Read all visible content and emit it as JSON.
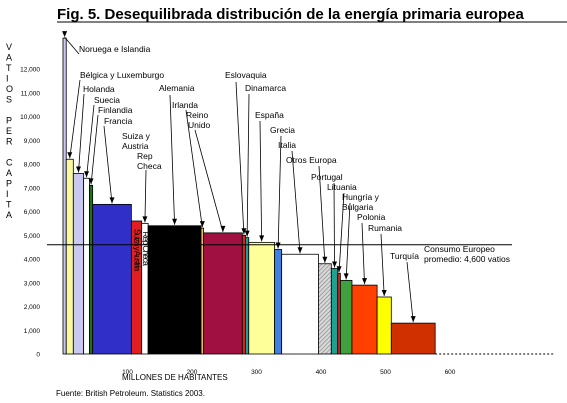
{
  "chart_data": {
    "type": "bar",
    "title": "Fig. 5. Desequilibrada distribución de la energía primaria europea",
    "ylabel_letters": [
      "V",
      "A",
      "T",
      "I",
      "O",
      "S",
      "",
      "P",
      "E",
      "R",
      "",
      "C",
      "A",
      "P",
      "I",
      "T",
      "A"
    ],
    "xlabel": "MILLONES DE HABITANTES",
    "source": "Fuente: British Petroleum. Statistics 2003.",
    "x_ticks": [
      "100",
      "200",
      "300",
      "400",
      "500",
      "600"
    ],
    "y_ticks": [
      "0",
      "1,000",
      "2,000",
      "3,000",
      "4,000",
      "5,000",
      "6,000",
      "7,000",
      "8,000",
      "9,000",
      "10,000",
      "11,000",
      "12,000"
    ],
    "xlim": [
      0,
      610
    ],
    "ylim": [
      0,
      12500
    ],
    "average": {
      "value": 4600,
      "label_line1": "Consumo Europeo",
      "label_line2": "promedio: 4,600 vatios"
    },
    "series": [
      {
        "country": "Noruega e Islandia",
        "population": 5,
        "watts": 13300,
        "color": "#c8c8f0"
      },
      {
        "country": "Bélgica y Luxemburgo",
        "population": 11,
        "watts": 8200,
        "color": "#f8f8a0"
      },
      {
        "country": "Holanda",
        "population": 16,
        "watts": 7600,
        "color": "#c8c8f0"
      },
      {
        "country": "Suecia",
        "population": 9,
        "watts": 7400,
        "color": "#ffffff"
      },
      {
        "country": "Finlandia",
        "population": 5,
        "watts": 7100,
        "color": "#207020"
      },
      {
        "country": "Francia",
        "population": 60,
        "watts": 6300,
        "color": "#3030c8"
      },
      {
        "country": "Suiza y Austria",
        "population": 16,
        "watts": 5600,
        "color": "#e02020"
      },
      {
        "country": "Rep Checa",
        "population": 10,
        "watts": 5500,
        "color": "#ffffff"
      },
      {
        "country": "Alemania",
        "population": 82,
        "watts": 5400,
        "color": "#000000"
      },
      {
        "country": "Irlanda",
        "population": 4,
        "watts": 5300,
        "color": "#e8c050"
      },
      {
        "country": "Reino Unido",
        "population": 60,
        "watts": 5100,
        "color": "#a01040"
      },
      {
        "country": "Eslovaquia",
        "population": 5,
        "watts": 5000,
        "color": "#e02020"
      },
      {
        "country": "Dinamarca",
        "population": 5,
        "watts": 4900,
        "color": "#20a090"
      },
      {
        "country": "España",
        "population": 40,
        "watts": 4700,
        "color": "#ffff99"
      },
      {
        "country": "Grecia",
        "population": 11,
        "watts": 4400,
        "color": "#4080e0"
      },
      {
        "country": "Italia",
        "population": 57,
        "watts": 4200,
        "color": "#ffffff"
      },
      {
        "country": "Otros Europa",
        "population": 20,
        "watts": 3800,
        "color": "#a8a8a8"
      },
      {
        "country": "Portugal",
        "population": 10,
        "watts": 3600,
        "color": "#20a090"
      },
      {
        "country": "Lituania",
        "population": 4,
        "watts": 3400,
        "color": "#e02020"
      },
      {
        "country": "Hungría y Bulgaria",
        "population": 18,
        "watts": 3100,
        "color": "#40a040"
      },
      {
        "country": "Polonia",
        "population": 39,
        "watts": 2900,
        "color": "#ff4000"
      },
      {
        "country": "Rumania",
        "population": 22,
        "watts": 2400,
        "color": "#ffff00"
      },
      {
        "country": "Turquía",
        "population": 68,
        "watts": 1300,
        "color": "#d03000"
      }
    ],
    "bar_labels": [
      {
        "text": "Noruega e Islandia"
      },
      {
        "text": "Bélgica y Luxemburgo"
      },
      {
        "text": "Holanda"
      },
      {
        "text": "Suecia"
      },
      {
        "text": "Finlandia"
      },
      {
        "text": "Francia"
      },
      {
        "text": "Suiza y"
      },
      {
        "text": "Austria"
      },
      {
        "text": "Rep"
      },
      {
        "text": "Checa"
      },
      {
        "text": "Alemania"
      },
      {
        "text": "Irlanda"
      },
      {
        "text": "Reino"
      },
      {
        "text": "Unido"
      },
      {
        "text": "Eslovaquia"
      },
      {
        "text": "Dinamarca"
      },
      {
        "text": "España"
      },
      {
        "text": "Grecia"
      },
      {
        "text": "Italia"
      },
      {
        "text": "Otros Europa"
      },
      {
        "text": "Portugal"
      },
      {
        "text": "Lituania"
      },
      {
        "text": "Hungría y"
      },
      {
        "text": "Bulgaria"
      },
      {
        "text": "Polonia"
      },
      {
        "text": "Rumania"
      },
      {
        "text": "Turquía"
      }
    ],
    "vertical_labels": [
      {
        "text": "Rep Checa",
        "bar": 7
      },
      {
        "text": "Suiza y Austria",
        "bar": 6
      }
    ],
    "grid": false,
    "legend": "none"
  }
}
